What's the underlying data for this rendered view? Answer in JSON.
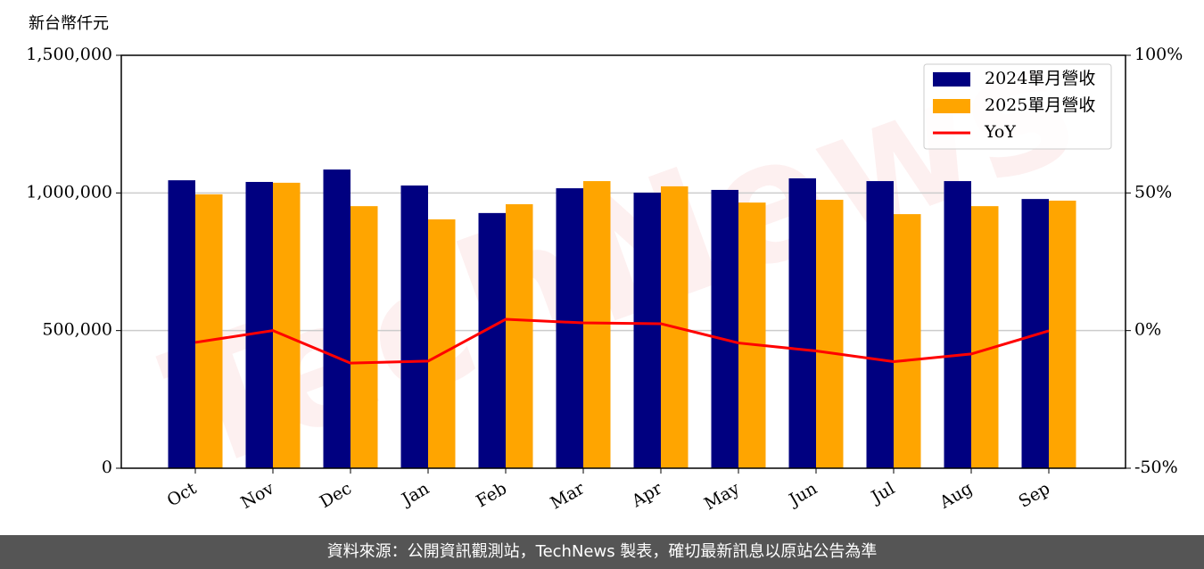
{
  "chart_data": {
    "type": "bar_line",
    "y_label": "新台幣仟元",
    "watermark": "TechNews",
    "categories": [
      "Oct",
      "Nov",
      "Dec",
      "Jan",
      "Feb",
      "Mar",
      "Apr",
      "May",
      "Jun",
      "Jul",
      "Aug",
      "Sep"
    ],
    "series": [
      {
        "name": "2024單月營收",
        "color": "#000080",
        "type": "bar",
        "values": [
          1046000,
          1040000,
          1085000,
          1027000,
          927000,
          1017000,
          1001000,
          1011000,
          1053000,
          1043000,
          1043000,
          978000
        ]
      },
      {
        "name": "2025單月營收",
        "color": "#ffa500",
        "type": "bar",
        "values": [
          995000,
          1037000,
          952000,
          904000,
          959000,
          1043000,
          1024000,
          965000,
          975000,
          923000,
          952000,
          972000
        ]
      },
      {
        "name": "YoY",
        "color": "#ff0000",
        "type": "line",
        "axis": "y2",
        "values": [
          -4.3,
          0,
          -11.8,
          -11.1,
          4.1,
          2.8,
          2.5,
          -4.5,
          -7.4,
          -11.3,
          -8.5,
          -0.1
        ]
      }
    ],
    "ylim": [
      0,
      1500000
    ],
    "yticks": [
      0,
      {
        "value": 500000,
        "label": "500,000"
      },
      {
        "value": 1000000,
        "label": "1,000,000"
      },
      {
        "value": 1500000,
        "label": "1,500,000"
      }
    ],
    "y2lim": [
      -50,
      100
    ],
    "y2ticks": [
      {
        "value": -50,
        "label": "-50%"
      },
      {
        "value": 0,
        "label": "0%"
      },
      {
        "value": 50,
        "label": "50%"
      },
      {
        "value": 100,
        "label": "100%"
      }
    ],
    "grid": true,
    "legend": "upper right",
    "footer": "資料來源：公開資訊觀測站，TechNews 製表，確切最新訊息以原站公告為準"
  }
}
